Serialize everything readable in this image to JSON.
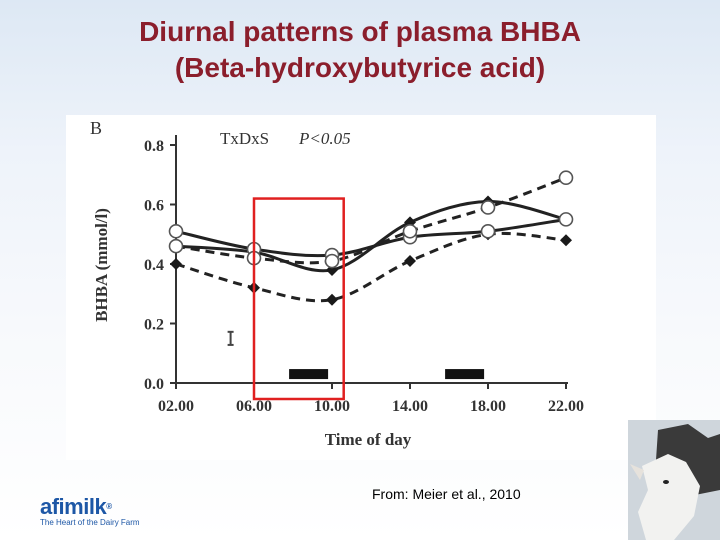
{
  "slide": {
    "title_line1": "Diurnal patterns of plasma BHBA",
    "title_line2": "(Beta-hydroxybutyrice acid)",
    "title_color": "#8b1e2c",
    "credit": "From: Meier et al., 2010"
  },
  "logo": {
    "word": "afimilk",
    "mark": "®",
    "tagline": "The Heart of the Dairy Farm",
    "color": "#1d57a6"
  },
  "chart_data": {
    "type": "line",
    "panel_label": "B",
    "annotation": "TxDxS",
    "annotation_p": "P<0.05",
    "xlabel": "Time of day",
    "ylabel": "BHBA (mmol/l)",
    "categories": [
      "02.00",
      "06.00",
      "10.00",
      "14.00",
      "18.00",
      "22.00"
    ],
    "yticks": [
      "0.0",
      "0.2",
      "0.4",
      "0.6",
      "0.8"
    ],
    "ylim": [
      0,
      0.8
    ],
    "grid": false,
    "series": [
      {
        "style": "solid",
        "marker": "open-circle",
        "values": [
          0.51,
          0.45,
          0.43,
          0.49,
          0.51,
          0.55
        ]
      },
      {
        "style": "solid",
        "marker": "filled-diamond",
        "values": [
          0.46,
          0.44,
          0.38,
          0.54,
          0.61,
          0.55
        ]
      },
      {
        "style": "dashed",
        "marker": "open-circle",
        "values": [
          0.46,
          0.42,
          0.41,
          0.51,
          0.59,
          0.69
        ]
      },
      {
        "style": "dashed",
        "marker": "filled-diamond",
        "values": [
          0.4,
          0.32,
          0.28,
          0.41,
          0.5,
          0.48
        ]
      }
    ],
    "error_bar": {
      "x": 0.7,
      "y": 0.15,
      "half": 0.022
    },
    "feeding_bars": [
      [
        1.45,
        1.95
      ],
      [
        3.45,
        3.95
      ]
    ],
    "feeding_bar_level": 0.03,
    "highlight": {
      "x_from": 1.0,
      "x_to": 2.15,
      "y_top": 0.62,
      "color": "#e02020"
    }
  }
}
